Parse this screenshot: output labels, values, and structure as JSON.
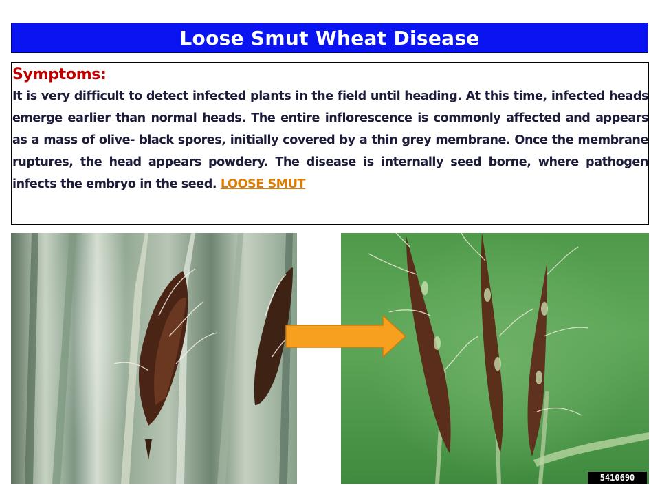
{
  "slide": {
    "title": "Loose Smut Wheat Disease",
    "symptoms_heading": "Symptoms:",
    "symptoms_text": "It is very difficult to detect infected plants in the field until   heading. At this time, infected heads emerge earlier than normal heads. The  entire inflorescence is commonly affected and appears as a mass of olive-  black spores, initially covered by a thin grey membrane. Once the membrane  ruptures, the head appears powdery. The disease is internally seed borne,  where pathogen infects the embryo in the seed.",
    "link_label": "LOOSE SMUT",
    "image_code": "5410690"
  },
  "colors": {
    "title_bg": "#0a14f0",
    "heading": "#c00000",
    "link": "#e07b00",
    "arrow": "#f7a020"
  },
  "icons": {
    "arrow": "right-arrow-icon"
  }
}
